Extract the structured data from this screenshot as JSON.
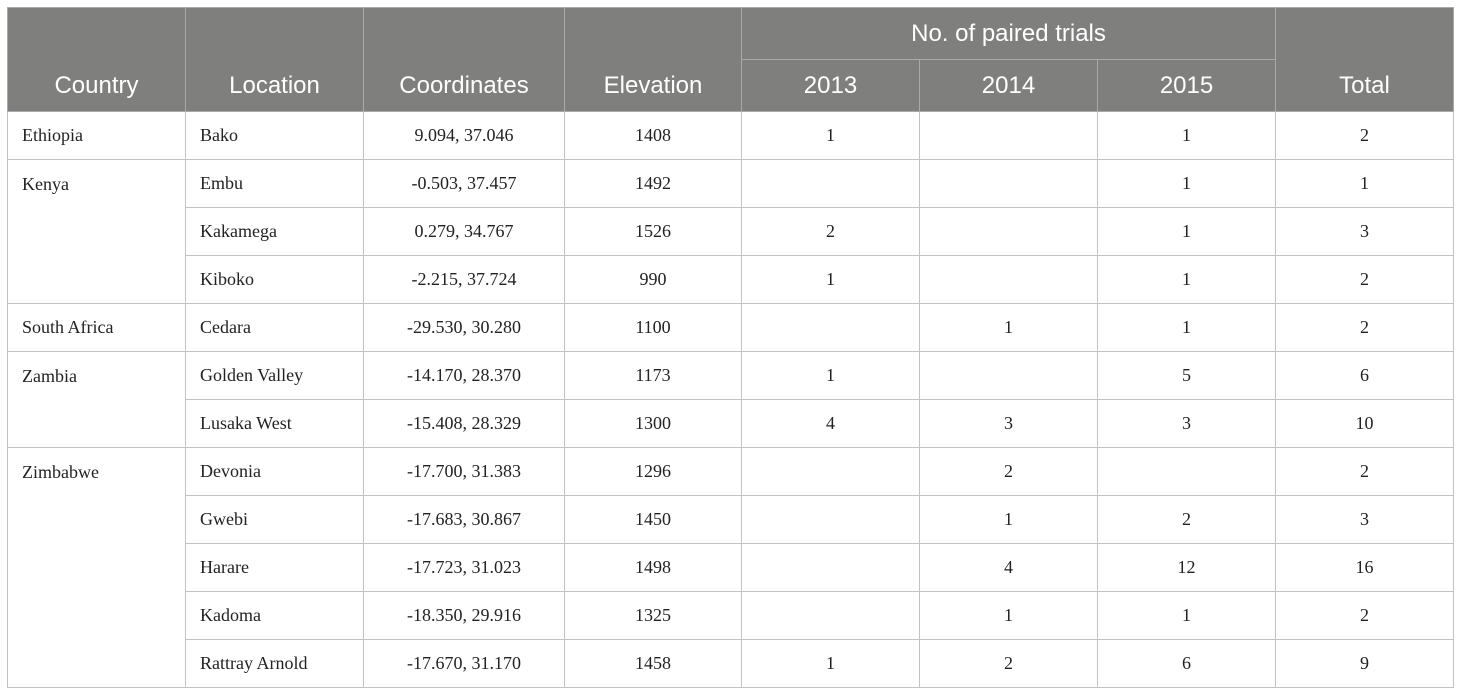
{
  "header": {
    "country": "Country",
    "location": "Location",
    "coordinates": "Coordinates",
    "elevation": "Elevation",
    "group": "No. of paired trials",
    "y2013": "2013",
    "y2014": "2014",
    "y2015": "2015",
    "total": "Total"
  },
  "groups": [
    {
      "country": "Ethiopia",
      "rows": [
        {
          "location": "Bako",
          "coordinates": "9.094, 37.046",
          "elevation": "1408",
          "y2013": "1",
          "y2014": "",
          "y2015": "1",
          "total": "2"
        }
      ]
    },
    {
      "country": "Kenya",
      "rows": [
        {
          "location": "Embu",
          "coordinates": "-0.503, 37.457",
          "elevation": "1492",
          "y2013": "",
          "y2014": "",
          "y2015": "1",
          "total": "1"
        },
        {
          "location": "Kakamega",
          "coordinates": "0.279, 34.767",
          "elevation": "1526",
          "y2013": "2",
          "y2014": "",
          "y2015": "1",
          "total": "3"
        },
        {
          "location": "Kiboko",
          "coordinates": "-2.215, 37.724",
          "elevation": "990",
          "y2013": "1",
          "y2014": "",
          "y2015": "1",
          "total": "2"
        }
      ]
    },
    {
      "country": "South Africa",
      "rows": [
        {
          "location": "Cedara",
          "coordinates": "-29.530, 30.280",
          "elevation": "1100",
          "y2013": "",
          "y2014": "1",
          "y2015": "1",
          "total": "2"
        }
      ]
    },
    {
      "country": "Zambia",
      "rows": [
        {
          "location": "Golden Valley",
          "coordinates": "-14.170, 28.370",
          "elevation": "1173",
          "y2013": "1",
          "y2014": "",
          "y2015": "5",
          "total": "6"
        },
        {
          "location": "Lusaka West",
          "coordinates": "-15.408, 28.329",
          "elevation": "1300",
          "y2013": "4",
          "y2014": "3",
          "y2015": "3",
          "total": "10"
        }
      ]
    },
    {
      "country": "Zimbabwe",
      "rows": [
        {
          "location": "Devonia",
          "coordinates": "-17.700, 31.383",
          "elevation": "1296",
          "y2013": "",
          "y2014": "2",
          "y2015": "",
          "total": "2"
        },
        {
          "location": "Gwebi",
          "coordinates": "-17.683, 30.867",
          "elevation": "1450",
          "y2013": "",
          "y2014": "1",
          "y2015": "2",
          "total": "3"
        },
        {
          "location": "Harare",
          "coordinates": "-17.723, 31.023",
          "elevation": "1498",
          "y2013": "",
          "y2014": "4",
          "y2015": "12",
          "total": "16"
        },
        {
          "location": "Kadoma",
          "coordinates": "-18.350, 29.916",
          "elevation": "1325",
          "y2013": "",
          "y2014": "1",
          "y2015": "1",
          "total": "2"
        },
        {
          "location": "Rattray Arnold",
          "coordinates": "-17.670, 31.170",
          "elevation": "1458",
          "y2013": "1",
          "y2014": "2",
          "y2015": "6",
          "total": "9"
        }
      ]
    }
  ]
}
